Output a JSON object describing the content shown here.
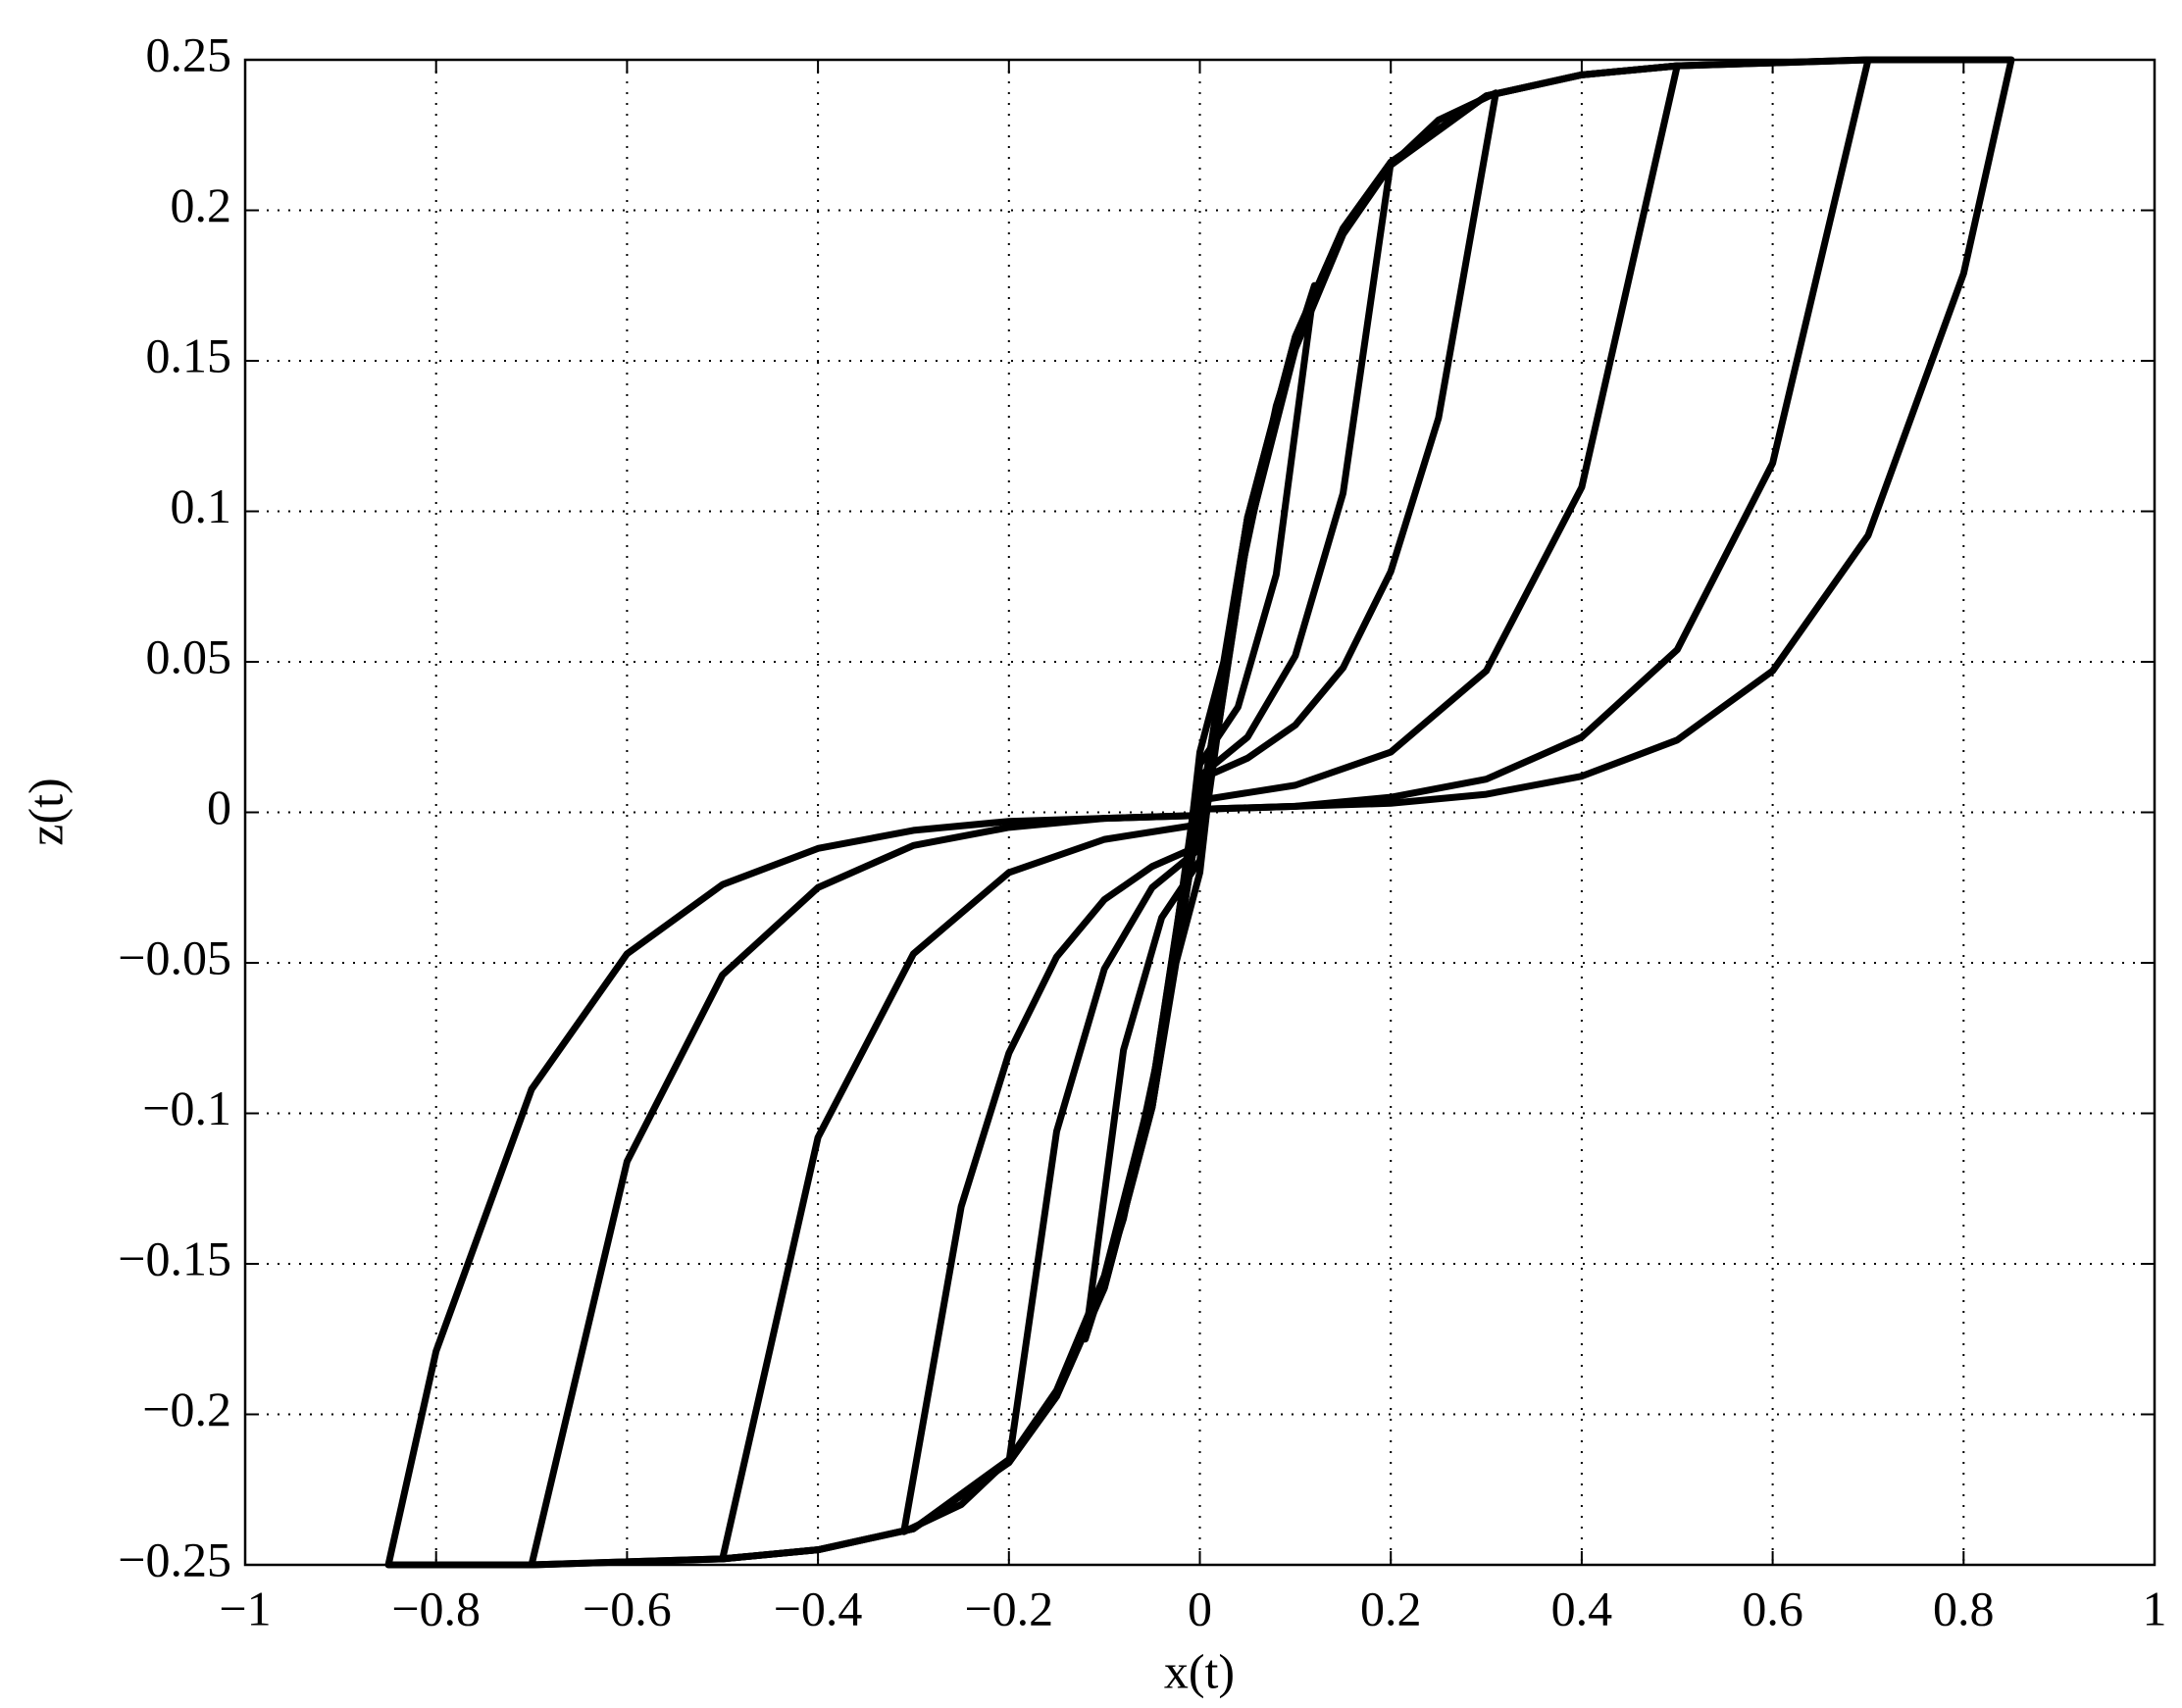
{
  "chart_data": {
    "type": "line",
    "xlabel": "x(t)",
    "ylabel": "z(t)",
    "xlim": [
      -1,
      1
    ],
    "ylim": [
      -0.25,
      0.25
    ],
    "xticks": [
      {
        "value": -1,
        "label": "−1"
      },
      {
        "value": -0.8,
        "label": "−0.8"
      },
      {
        "value": -0.6,
        "label": "−0.6"
      },
      {
        "value": -0.4,
        "label": "−0.4"
      },
      {
        "value": -0.2,
        "label": "−0.2"
      },
      0,
      0.2,
      0.4,
      0.6,
      0.8,
      1
    ],
    "yticks": [
      {
        "value": -0.25,
        "label": "−0.25"
      },
      {
        "value": -0.2,
        "label": "−0.2"
      },
      {
        "value": -0.15,
        "label": "−0.15"
      },
      {
        "value": -0.1,
        "label": "−0.1"
      },
      {
        "value": -0.05,
        "label": "−0.05"
      },
      0,
      0.05,
      0.1,
      0.15,
      0.2,
      0.25
    ],
    "grid": true,
    "series": [
      {
        "color": "#000000",
        "x": [
          0.85,
          0.8,
          0.7,
          0.6,
          0.5,
          0.4,
          0.3,
          0.2,
          0.1,
          0,
          -0.05,
          -0.1,
          -0.15,
          -0.2,
          -0.3,
          -0.4,
          -0.5,
          -0.6,
          -0.7,
          -0.8,
          -0.85,
          -0.8,
          -0.7,
          -0.6,
          -0.5,
          -0.4,
          -0.3,
          -0.2,
          -0.1,
          0,
          0.05,
          0.1,
          0.15,
          0.2,
          0.3,
          0.4,
          0.5,
          0.6,
          0.7,
          0.8,
          0.85
        ],
        "values": [
          0.25,
          0.179,
          0.092,
          0.047,
          0.024,
          0.012,
          0.006,
          0.003,
          0.002,
          0.001,
          -0.098,
          -0.158,
          -0.194,
          -0.216,
          -0.238,
          -0.245,
          -0.248,
          -0.249,
          -0.25,
          -0.25,
          -0.25,
          -0.179,
          -0.092,
          -0.047,
          -0.024,
          -0.012,
          -0.006,
          -0.003,
          -0.002,
          -0.001,
          0.098,
          0.158,
          0.194,
          0.216,
          0.238,
          0.245,
          0.248,
          0.249,
          0.25,
          0.25,
          0.25
        ]
      },
      {
        "color": "#000000",
        "x": [
          0.7,
          0.6,
          0.5,
          0.4,
          0.3,
          0.2,
          0.1,
          0,
          -0.05,
          -0.1,
          -0.15,
          -0.2,
          -0.3,
          -0.4,
          -0.5,
          -0.6,
          -0.7,
          -0.6,
          -0.5,
          -0.4,
          -0.3,
          -0.2,
          -0.1,
          0,
          0.05,
          0.1,
          0.15,
          0.2,
          0.3,
          0.4,
          0.5,
          0.6,
          0.7
        ],
        "values": [
          0.25,
          0.116,
          0.054,
          0.025,
          0.011,
          0.005,
          0.002,
          0.001,
          -0.098,
          -0.158,
          -0.194,
          -0.216,
          -0.238,
          -0.245,
          -0.248,
          -0.249,
          -0.25,
          -0.116,
          -0.054,
          -0.025,
          -0.011,
          -0.005,
          -0.002,
          -0.001,
          0.098,
          0.158,
          0.194,
          0.216,
          0.238,
          0.245,
          0.248,
          0.249,
          0.25
        ]
      },
      {
        "color": "#000000",
        "x": [
          0.5,
          0.4,
          0.3,
          0.2,
          0.1,
          0,
          -0.05,
          -0.1,
          -0.15,
          -0.2,
          -0.3,
          -0.4,
          -0.5,
          -0.4,
          -0.3,
          -0.2,
          -0.1,
          0,
          0.05,
          0.1,
          0.15,
          0.2,
          0.3,
          0.4,
          0.5
        ],
        "values": [
          0.248,
          0.108,
          0.047,
          0.02,
          0.009,
          0.004,
          -0.096,
          -0.156,
          -0.193,
          -0.215,
          -0.238,
          -0.245,
          -0.248,
          -0.108,
          -0.047,
          -0.02,
          -0.009,
          -0.004,
          0.096,
          0.156,
          0.193,
          0.215,
          0.238,
          0.245,
          0.248
        ]
      },
      {
        "color": "#000000",
        "x": [
          0.31,
          0.25,
          0.2,
          0.15,
          0.1,
          0.05,
          0,
          -0.05,
          -0.1,
          -0.15,
          -0.2,
          -0.25,
          -0.31,
          -0.25,
          -0.2,
          -0.15,
          -0.1,
          -0.05,
          0,
          0.05,
          0.1,
          0.15,
          0.2,
          0.25,
          0.31
        ],
        "values": [
          0.239,
          0.131,
          0.08,
          0.048,
          0.029,
          0.018,
          0.011,
          -0.092,
          -0.154,
          -0.192,
          -0.215,
          -0.23,
          -0.239,
          -0.131,
          -0.08,
          -0.048,
          -0.029,
          -0.018,
          -0.011,
          0.092,
          0.154,
          0.192,
          0.215,
          0.23,
          0.239
        ]
      },
      {
        "color": "#000000",
        "x": [
          0.2,
          0.15,
          0.1,
          0.05,
          0,
          -0.05,
          -0.1,
          -0.15,
          -0.2,
          -0.15,
          -0.1,
          -0.05,
          0,
          0.05,
          0.1,
          0.15,
          0.2
        ],
        "values": [
          0.216,
          0.106,
          0.052,
          0.025,
          0.012,
          -0.092,
          -0.155,
          -0.193,
          -0.216,
          -0.106,
          -0.052,
          -0.025,
          -0.012,
          0.092,
          0.155,
          0.193,
          0.216
        ]
      },
      {
        "color": "#000000",
        "x": [
          0.12,
          0.08,
          0.04,
          0,
          -0.04,
          -0.08,
          -0.12,
          -0.08,
          -0.04,
          0,
          0.04,
          0.08,
          0.12
        ],
        "values": [
          0.175,
          0.079,
          0.035,
          0.016,
          -0.075,
          -0.135,
          -0.175,
          -0.079,
          -0.035,
          -0.016,
          0.075,
          0.135,
          0.175
        ]
      },
      {
        "color": "#000000",
        "x": [
          0.05,
          0.025,
          0,
          -0.025,
          -0.05,
          -0.025,
          0,
          0.025,
          0.05
        ],
        "values": [
          0.098,
          0.05,
          0.02,
          -0.05,
          -0.098,
          -0.05,
          -0.02,
          0.05,
          0.098
        ]
      }
    ]
  }
}
